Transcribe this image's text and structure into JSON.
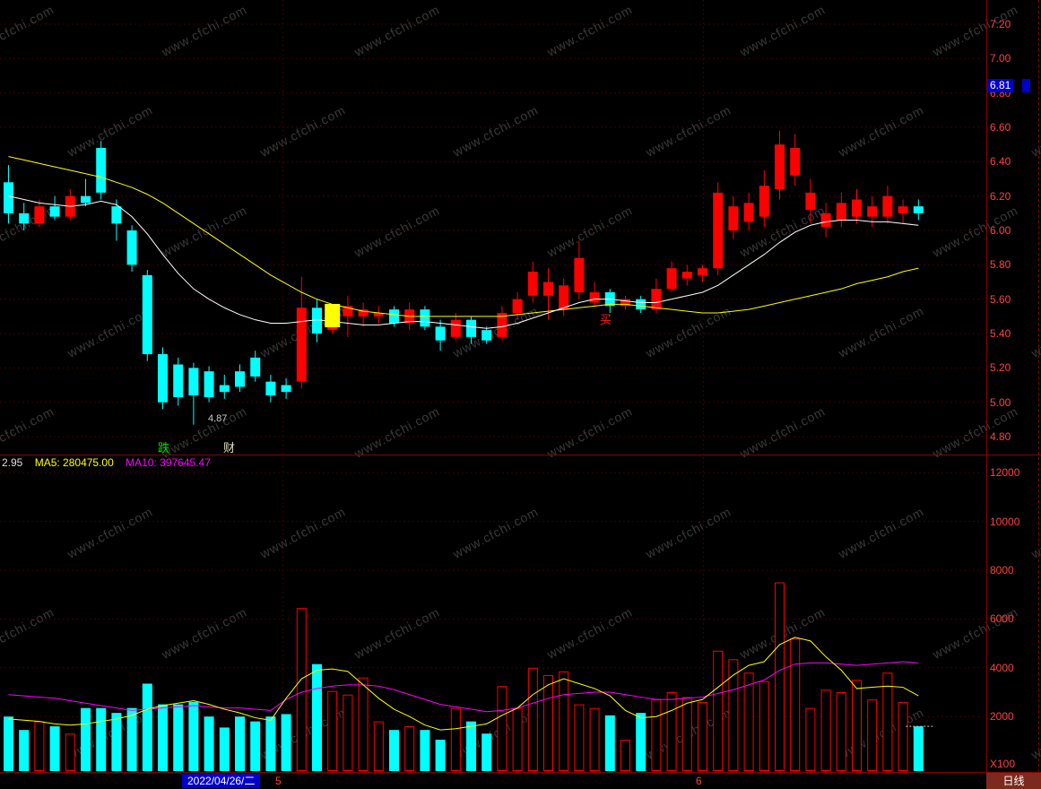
{
  "watermark": {
    "text": "www.cfchi.com"
  },
  "colors": {
    "up": "#ff0000",
    "down": "#00ffff",
    "ma_short": "#ffffff",
    "ma_long": "#ffff00",
    "vol_ma5": "#ffff00",
    "vol_ma10": "#ff00ff",
    "axis_text": "#ff4040",
    "grid": "#3e0000",
    "frame": "#8b0000",
    "tag_bg": "#0000cc",
    "signal": "#ffff00"
  },
  "price_axis": {
    "labels": [
      "7.20",
      "7.00",
      "6.80",
      "6.60",
      "6.40",
      "6.20",
      "6.00",
      "5.80",
      "5.60",
      "5.40",
      "5.20",
      "5.00",
      "4.80"
    ],
    "current_tag": "6.81"
  },
  "volume_axis": {
    "labels": [
      "12000",
      "10000",
      "8000",
      "6000",
      "4000",
      "2000"
    ],
    "unit": "X100"
  },
  "indicator_header": {
    "value_left": "2.95",
    "ma5": "MA5: 280475.00",
    "ma10": "MA10: 397645.47"
  },
  "annotations": {
    "low_price": "4.87",
    "marker_fall": "跌",
    "marker_wealth": "财",
    "buy_signal": "买"
  },
  "footer": {
    "date": "2022/04/26/二",
    "month_markers": [
      "5",
      "6"
    ],
    "period": "日线"
  },
  "chart_data": {
    "type": "candlestick",
    "price_range": [
      4.8,
      7.2
    ],
    "volume_range": [
      0,
      12000
    ],
    "volume_unit": "X100",
    "signal_index": 21,
    "month_tick_indices": [
      17.8,
      45.05
    ],
    "candles": [
      [
        6.28,
        6.38,
        6.04,
        6.1,
        2000
      ],
      [
        6.1,
        6.16,
        6.0,
        6.04,
        1450
      ],
      [
        6.04,
        6.18,
        6.02,
        6.14,
        1800
      ],
      [
        6.14,
        6.2,
        6.06,
        6.08,
        1600
      ],
      [
        6.08,
        6.24,
        6.06,
        6.2,
        1300
      ],
      [
        6.2,
        6.3,
        6.14,
        6.16,
        2350
      ],
      [
        6.48,
        6.52,
        6.18,
        6.22,
        2350
      ],
      [
        6.14,
        6.18,
        5.94,
        6.04,
        2150
      ],
      [
        6.0,
        6.03,
        5.76,
        5.8,
        2350
      ],
      [
        5.74,
        5.77,
        5.24,
        5.28,
        3350
      ],
      [
        5.28,
        5.32,
        4.96,
        5.0,
        2500
      ],
      [
        5.22,
        5.26,
        4.98,
        5.03,
        2500
      ],
      [
        5.2,
        5.23,
        4.87,
        5.04,
        2600
      ],
      [
        5.18,
        5.21,
        5.0,
        5.03,
        2000
      ],
      [
        5.1,
        5.16,
        5.02,
        5.06,
        1550
      ],
      [
        5.18,
        5.22,
        5.06,
        5.09,
        2000
      ],
      [
        5.26,
        5.3,
        5.12,
        5.15,
        1800
      ],
      [
        5.12,
        5.16,
        5.0,
        5.04,
        2000
      ],
      [
        5.1,
        5.14,
        5.02,
        5.06,
        2100
      ],
      [
        5.12,
        5.73,
        5.08,
        5.55,
        6450
      ],
      [
        5.55,
        5.6,
        5.35,
        5.4,
        4150
      ],
      [
        5.42,
        5.56,
        5.4,
        5.52,
        3050
      ],
      [
        5.5,
        5.62,
        5.38,
        5.56,
        2900
      ],
      [
        5.5,
        5.58,
        5.44,
        5.54,
        3600
      ],
      [
        5.5,
        5.56,
        5.46,
        5.52,
        1800
      ],
      [
        5.54,
        5.56,
        5.44,
        5.46,
        1450
      ],
      [
        5.46,
        5.58,
        5.42,
        5.54,
        1600
      ],
      [
        5.54,
        5.56,
        5.42,
        5.44,
        1450
      ],
      [
        5.44,
        5.48,
        5.3,
        5.36,
        1050
      ],
      [
        5.38,
        5.52,
        5.36,
        5.48,
        2350
      ],
      [
        5.48,
        5.5,
        5.34,
        5.38,
        1800
      ],
      [
        5.42,
        5.44,
        5.34,
        5.36,
        1300
      ],
      [
        5.38,
        5.56,
        5.36,
        5.52,
        3250
      ],
      [
        5.52,
        5.64,
        5.48,
        5.6,
        2350
      ],
      [
        5.62,
        5.82,
        5.58,
        5.76,
        4000
      ],
      [
        5.62,
        5.78,
        5.48,
        5.7,
        3700
      ],
      [
        5.54,
        5.72,
        5.5,
        5.68,
        3850
      ],
      [
        5.64,
        5.94,
        5.6,
        5.84,
        2500
      ],
      [
        5.58,
        5.7,
        5.56,
        5.64,
        2350
      ],
      [
        5.64,
        5.66,
        5.52,
        5.56,
        2050
      ],
      [
        5.56,
        5.62,
        5.54,
        5.6,
        1050
      ],
      [
        5.6,
        5.62,
        5.52,
        5.54,
        2150
      ],
      [
        5.54,
        5.72,
        5.52,
        5.66,
        2700
      ],
      [
        5.66,
        5.82,
        5.64,
        5.78,
        3000
      ],
      [
        5.72,
        5.8,
        5.68,
        5.76,
        2800
      ],
      [
        5.74,
        5.8,
        5.7,
        5.78,
        2600
      ],
      [
        5.78,
        6.28,
        5.74,
        6.22,
        4700
      ],
      [
        6.0,
        6.2,
        5.95,
        6.14,
        4350
      ],
      [
        6.05,
        6.22,
        6.0,
        6.16,
        3800
      ],
      [
        6.08,
        6.35,
        6.02,
        6.26,
        3450
      ],
      [
        6.24,
        6.58,
        6.18,
        6.5,
        7500
      ],
      [
        6.32,
        6.56,
        6.26,
        6.48,
        5200
      ],
      [
        6.12,
        6.3,
        6.04,
        6.22,
        2350
      ],
      [
        6.02,
        6.16,
        5.96,
        6.1,
        3100
      ],
      [
        6.06,
        6.22,
        6.02,
        6.16,
        3000
      ],
      [
        6.08,
        6.24,
        6.04,
        6.18,
        3500
      ],
      [
        6.08,
        6.2,
        6.02,
        6.14,
        2700
      ],
      [
        6.08,
        6.26,
        6.04,
        6.2,
        3800
      ],
      [
        6.1,
        6.18,
        6.04,
        6.14,
        2600
      ],
      [
        6.14,
        6.18,
        6.06,
        6.1,
        1600
      ]
    ],
    "ma_short": [
      6.2,
      6.18,
      6.16,
      6.15,
      6.14,
      6.15,
      6.17,
      6.15,
      6.08,
      5.98,
      5.86,
      5.75,
      5.66,
      5.6,
      5.55,
      5.51,
      5.48,
      5.46,
      5.46,
      5.47,
      5.48,
      5.47,
      5.46,
      5.45,
      5.45,
      5.46,
      5.47,
      5.47,
      5.46,
      5.45,
      5.44,
      5.43,
      5.44,
      5.46,
      5.49,
      5.52,
      5.55,
      5.58,
      5.6,
      5.6,
      5.59,
      5.58,
      5.58,
      5.6,
      5.62,
      5.64,
      5.68,
      5.74,
      5.8,
      5.86,
      5.93,
      5.99,
      6.03,
      6.05,
      6.06,
      6.06,
      6.05,
      6.05,
      6.04,
      6.03
    ],
    "ma_long": [
      6.43,
      6.41,
      6.39,
      6.37,
      6.35,
      6.33,
      6.31,
      6.28,
      6.25,
      6.21,
      6.16,
      6.1,
      6.04,
      5.98,
      5.92,
      5.86,
      5.8,
      5.74,
      5.69,
      5.64,
      5.6,
      5.57,
      5.55,
      5.53,
      5.52,
      5.51,
      5.5,
      5.5,
      5.5,
      5.5,
      5.5,
      5.5,
      5.5,
      5.51,
      5.52,
      5.53,
      5.54,
      5.55,
      5.56,
      5.57,
      5.57,
      5.56,
      5.55,
      5.54,
      5.53,
      5.52,
      5.52,
      5.53,
      5.54,
      5.56,
      5.58,
      5.6,
      5.62,
      5.64,
      5.66,
      5.69,
      5.71,
      5.73,
      5.76,
      5.78
    ],
    "vol_ma5": [
      1900,
      1850,
      1800,
      1700,
      1650,
      1700,
      1800,
      1900,
      2050,
      2300,
      2450,
      2550,
      2650,
      2500,
      2300,
      2150,
      1950,
      1850,
      2750,
      3550,
      3900,
      3950,
      3850,
      3300,
      2750,
      2300,
      2000,
      1650,
      1450,
      1500,
      1600,
      1700,
      2050,
      2350,
      2900,
      3300,
      3550,
      3350,
      3150,
      2850,
      2250,
      1950,
      2000,
      2250,
      2550,
      2700,
      3200,
      3700,
      4100,
      4250,
      4950,
      5250,
      5100,
      4450,
      3900,
      3150,
      3200,
      3250,
      3200,
      2850
    ],
    "vol_ma10": [
      2900,
      2850,
      2800,
      2750,
      2650,
      2550,
      2450,
      2350,
      2250,
      2300,
      2350,
      2400,
      2450,
      2400,
      2350,
      2350,
      2300,
      2250,
      2700,
      3000,
      3150,
      3250,
      3300,
      3300,
      3250,
      3100,
      2900,
      2700,
      2500,
      2400,
      2300,
      2200,
      2250,
      2350,
      2550,
      2750,
      2900,
      2950,
      3000,
      3000,
      2900,
      2800,
      2700,
      2700,
      2750,
      2800,
      2950,
      3100,
      3300,
      3500,
      3900,
      4150,
      4200,
      4200,
      4150,
      4100,
      4150,
      4200,
      4250,
      4200
    ]
  }
}
